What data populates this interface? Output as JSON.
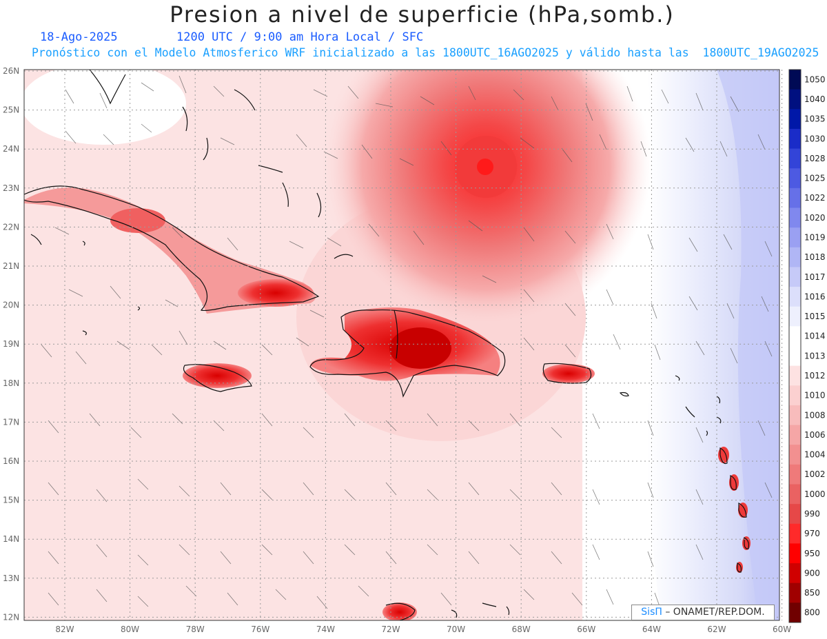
{
  "header": {
    "title": "Presion a nivel de superficie (hPa,somb.)",
    "date": "18-Ago-2025",
    "time_info": "1200 UTC / 9:00 am Hora Local / SFC",
    "forecast_info": "Pronóstico con el Modelo Atmosferico WRF inicializado a las 1800UTC_16AGO2025 y válido hasta las  1800UTC_19AGO2025"
  },
  "map": {
    "lat_labels": [
      "26N",
      "25N",
      "24N",
      "23N",
      "22N",
      "21N",
      "20N",
      "19N",
      "18N",
      "17N",
      "16N",
      "15N",
      "14N",
      "13N",
      "12N"
    ],
    "lon_labels": [
      "82W",
      "80W",
      "78W",
      "76W",
      "74W",
      "72W",
      "70W",
      "68W",
      "66W",
      "64W",
      "62W",
      "60W"
    ],
    "low_center": "hurricane low near 23.5N 69W",
    "shading": "pressure shading, red for low, blue for high"
  },
  "colorbar": {
    "levels": [
      "1050",
      "1040",
      "1035",
      "1030",
      "1028",
      "1025",
      "1022",
      "1020",
      "1019",
      "1018",
      "1017",
      "1016",
      "1015",
      "1014",
      "1013",
      "1012",
      "1010",
      "1008",
      "1006",
      "1004",
      "1002",
      "1000",
      "990",
      "970",
      "950",
      "900",
      "850",
      "800"
    ],
    "colors": [
      "#000a55",
      "#001080",
      "#0018a8",
      "#1a2cc8",
      "#3344d8",
      "#4d5ae2",
      "#6670e8",
      "#8088ee",
      "#9aa0f2",
      "#b0b6f5",
      "#c6caf8",
      "#dcdffb",
      "#eef0fd",
      "#ffffff",
      "#ffffff",
      "#fde2e2",
      "#fbd0d0",
      "#f8bcbc",
      "#f5a6a6",
      "#f29090",
      "#ef7a7a",
      "#ea6262",
      "#e64848",
      "#ff2a2a",
      "#ff0000",
      "#d00000",
      "#a00000",
      "#700000"
    ]
  },
  "credit": {
    "brand": "SisΠ",
    "org": " – ONAMET/REP.DOM."
  }
}
